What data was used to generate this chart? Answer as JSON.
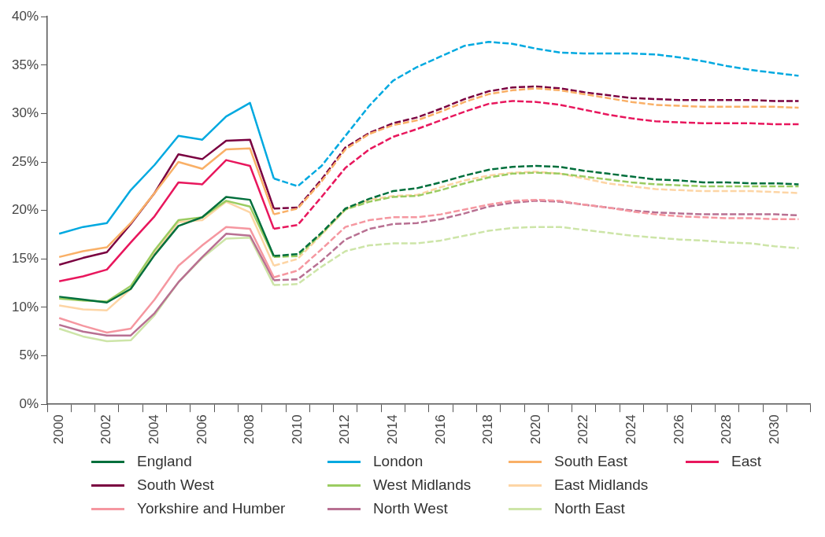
{
  "chart_data": {
    "type": "line",
    "categories": [
      "2000",
      null,
      "2002",
      null,
      "2004",
      null,
      "2006",
      null,
      "2008",
      null,
      "2010",
      null,
      "2012",
      null,
      "2014",
      null,
      "2016",
      null,
      "2018",
      null,
      "2020",
      null,
      "2022",
      null,
      "2024",
      null,
      "2026",
      null,
      "2028",
      null,
      "2030",
      null
    ],
    "ylim": [
      0,
      40
    ],
    "yticks": [
      {
        "value": 0,
        "label": "0%"
      },
      {
        "value": 5,
        "label": "5%"
      },
      {
        "value": 10,
        "label": "10%"
      },
      {
        "value": 15,
        "label": "15%"
      },
      {
        "value": 20,
        "label": "20%"
      },
      {
        "value": 25,
        "label": "25%"
      },
      {
        "value": 30,
        "label": "30%"
      },
      {
        "value": 35,
        "label": "35%"
      },
      {
        "value": 40,
        "label": "40%"
      }
    ],
    "grid": false,
    "legend": "bottom",
    "marker": "none",
    "line_style": "solid",
    "series": [
      {
        "name": "England",
        "color": "#006f3c",
        "values": [
          11.1,
          10.8,
          10.5,
          11.9,
          15.4,
          18.4,
          19.3,
          21.4,
          21.1,
          15.3,
          null,
          null,
          null,
          null,
          null,
          null,
          null,
          null,
          null,
          null,
          null,
          null,
          null,
          null,
          null,
          null,
          null,
          null,
          null,
          null,
          null,
          null
        ]
      },
      {
        "name": "London",
        "color": "#00a9e0",
        "values": [
          17.6,
          18.3,
          18.7,
          22.1,
          24.7,
          27.7,
          27.3,
          29.7,
          31.1,
          23.3,
          null,
          null,
          null,
          null,
          null,
          null,
          null,
          null,
          null,
          null,
          null,
          null,
          null,
          null,
          null,
          null,
          null,
          null,
          null,
          null,
          null,
          null
        ]
      },
      {
        "name": "South East",
        "color": "#f9b067",
        "values": [
          15.2,
          15.8,
          16.2,
          18.7,
          21.8,
          25.0,
          24.3,
          26.3,
          26.4,
          19.6,
          null,
          null,
          null,
          null,
          null,
          null,
          null,
          null,
          null,
          null,
          null,
          null,
          null,
          null,
          null,
          null,
          null,
          null,
          null,
          null,
          null,
          null
        ]
      },
      {
        "name": "East",
        "color": "#e8175d",
        "values": [
          12.7,
          13.2,
          13.9,
          16.7,
          19.4,
          22.9,
          22.7,
          25.2,
          24.6,
          18.1,
          null,
          null,
          null,
          null,
          null,
          null,
          null,
          null,
          null,
          null,
          null,
          null,
          null,
          null,
          null,
          null,
          null,
          null,
          null,
          null,
          null,
          null
        ]
      },
      {
        "name": "South West",
        "color": "#7a0040",
        "values": [
          14.4,
          15.1,
          15.7,
          18.6,
          21.8,
          25.8,
          25.3,
          27.2,
          27.3,
          20.2,
          null,
          null,
          null,
          null,
          null,
          null,
          null,
          null,
          null,
          null,
          null,
          null,
          null,
          null,
          null,
          null,
          null,
          null,
          null,
          null,
          null,
          null
        ]
      },
      {
        "name": "West Midlands",
        "color": "#9bcc61",
        "values": [
          10.9,
          10.7,
          10.6,
          12.2,
          15.9,
          19.0,
          19.3,
          21.0,
          20.4,
          15.2,
          null,
          null,
          null,
          null,
          null,
          null,
          null,
          null,
          null,
          null,
          null,
          null,
          null,
          null,
          null,
          null,
          null,
          null,
          null,
          null,
          null,
          null
        ]
      },
      {
        "name": "East Midlands",
        "color": "#fdd5a5",
        "values": [
          10.2,
          9.8,
          9.7,
          11.9,
          15.6,
          18.8,
          19.0,
          20.9,
          19.8,
          14.3,
          null,
          null,
          null,
          null,
          null,
          null,
          null,
          null,
          null,
          null,
          null,
          null,
          null,
          null,
          null,
          null,
          null,
          null,
          null,
          null,
          null,
          null
        ]
      },
      {
        "name": "Yorkshire and Humber",
        "color": "#f597a0",
        "values": [
          8.9,
          8.1,
          7.4,
          7.8,
          10.8,
          14.3,
          16.4,
          18.3,
          18.1,
          13.1,
          null,
          null,
          null,
          null,
          null,
          null,
          null,
          null,
          null,
          null,
          null,
          null,
          null,
          null,
          null,
          null,
          null,
          null,
          null,
          null,
          null,
          null
        ]
      },
      {
        "name": "North West",
        "color": "#b87092",
        "values": [
          8.2,
          7.5,
          7.1,
          7.1,
          9.4,
          12.6,
          15.2,
          17.6,
          17.4,
          12.8,
          null,
          null,
          null,
          null,
          null,
          null,
          null,
          null,
          null,
          null,
          null,
          null,
          null,
          null,
          null,
          null,
          null,
          null,
          null,
          null,
          null,
          null
        ]
      },
      {
        "name": "North East",
        "color": "#cde5a8",
        "values": [
          7.8,
          7.0,
          6.5,
          6.6,
          9.2,
          12.6,
          15.1,
          17.1,
          17.2,
          12.3,
          null,
          null,
          null,
          null,
          null,
          null,
          null,
          null,
          null,
          null,
          null,
          null,
          null,
          null,
          null,
          null,
          null,
          null,
          null,
          null,
          null,
          null
        ]
      },
      {
        "color": "#006f3c",
        "line_style": "dashed",
        "values": [
          null,
          null,
          null,
          null,
          null,
          null,
          null,
          null,
          null,
          15.3,
          15.5,
          17.7,
          20.2,
          21.2,
          22.0,
          22.3,
          22.9,
          23.6,
          24.2,
          24.5,
          24.6,
          24.5,
          24.1,
          23.8,
          23.5,
          23.2,
          23.1,
          22.9,
          22.9,
          22.8,
          22.8,
          22.7
        ]
      },
      {
        "color": "#00a9e0",
        "line_style": "dashed",
        "values": [
          null,
          null,
          null,
          null,
          null,
          null,
          null,
          null,
          null,
          23.3,
          22.5,
          24.6,
          27.7,
          30.8,
          33.4,
          34.8,
          35.9,
          37.0,
          37.4,
          37.2,
          36.7,
          36.3,
          36.2,
          36.2,
          36.2,
          36.1,
          35.8,
          35.4,
          34.9,
          34.5,
          34.2,
          33.9
        ]
      },
      {
        "color": "#f9b067",
        "line_style": "dashed",
        "values": [
          null,
          null,
          null,
          null,
          null,
          null,
          null,
          null,
          null,
          19.6,
          20.2,
          23.0,
          26.3,
          27.9,
          28.8,
          29.3,
          30.2,
          31.2,
          32.0,
          32.4,
          32.6,
          32.4,
          32.0,
          31.6,
          31.2,
          30.9,
          30.8,
          30.7,
          30.7,
          30.7,
          30.7,
          30.6
        ]
      },
      {
        "color": "#e8175d",
        "line_style": "dashed",
        "values": [
          null,
          null,
          null,
          null,
          null,
          null,
          null,
          null,
          null,
          18.1,
          18.5,
          21.4,
          24.4,
          26.3,
          27.6,
          28.4,
          29.3,
          30.2,
          31.0,
          31.3,
          31.2,
          30.9,
          30.4,
          29.9,
          29.5,
          29.2,
          29.1,
          29.0,
          29.0,
          29.0,
          28.9,
          28.9
        ]
      },
      {
        "color": "#7a0040",
        "line_style": "dashed",
        "values": [
          null,
          null,
          null,
          null,
          null,
          null,
          null,
          null,
          null,
          20.2,
          20.3,
          23.2,
          26.5,
          28.0,
          29.0,
          29.6,
          30.5,
          31.5,
          32.3,
          32.7,
          32.8,
          32.6,
          32.2,
          31.9,
          31.6,
          31.5,
          31.4,
          31.4,
          31.4,
          31.4,
          31.3,
          31.3
        ]
      },
      {
        "color": "#9bcc61",
        "line_style": "dashed",
        "values": [
          null,
          null,
          null,
          null,
          null,
          null,
          null,
          null,
          null,
          15.2,
          15.3,
          17.6,
          20.1,
          20.9,
          21.4,
          21.5,
          22.1,
          22.8,
          23.4,
          23.8,
          23.9,
          23.8,
          23.5,
          23.2,
          22.9,
          22.7,
          22.6,
          22.5,
          22.5,
          22.5,
          22.5,
          22.5
        ]
      },
      {
        "color": "#fdd5a5",
        "line_style": "dashed",
        "values": [
          null,
          null,
          null,
          null,
          null,
          null,
          null,
          null,
          null,
          14.3,
          15.0,
          17.5,
          20.1,
          21.1,
          21.5,
          21.6,
          22.4,
          23.1,
          23.6,
          23.9,
          24.0,
          23.8,
          23.3,
          22.8,
          22.5,
          22.2,
          22.1,
          22.0,
          22.0,
          22.0,
          21.9,
          21.8
        ]
      },
      {
        "color": "#f597a0",
        "line_style": "dashed",
        "values": [
          null,
          null,
          null,
          null,
          null,
          null,
          null,
          null,
          null,
          13.1,
          13.8,
          16.0,
          18.3,
          19.0,
          19.3,
          19.3,
          19.6,
          20.1,
          20.6,
          21.0,
          21.1,
          21.0,
          20.6,
          20.3,
          19.9,
          19.6,
          19.4,
          19.3,
          19.2,
          19.2,
          19.1,
          19.1
        ]
      },
      {
        "color": "#b87092",
        "line_style": "dashed",
        "values": [
          null,
          null,
          null,
          null,
          null,
          null,
          null,
          null,
          null,
          12.8,
          12.9,
          14.8,
          17.0,
          18.1,
          18.6,
          18.7,
          19.1,
          19.7,
          20.4,
          20.8,
          21.0,
          20.9,
          20.6,
          20.3,
          20.0,
          19.8,
          19.7,
          19.6,
          19.6,
          19.6,
          19.6,
          19.5
        ]
      },
      {
        "color": "#cde5a8",
        "line_style": "dashed",
        "values": [
          null,
          null,
          null,
          null,
          null,
          null,
          null,
          null,
          null,
          12.3,
          12.4,
          14.2,
          15.8,
          16.4,
          16.6,
          16.6,
          16.9,
          17.4,
          17.9,
          18.2,
          18.3,
          18.3,
          18.0,
          17.7,
          17.4,
          17.2,
          17.0,
          16.9,
          16.7,
          16.6,
          16.3,
          16.1
        ]
      }
    ]
  }
}
